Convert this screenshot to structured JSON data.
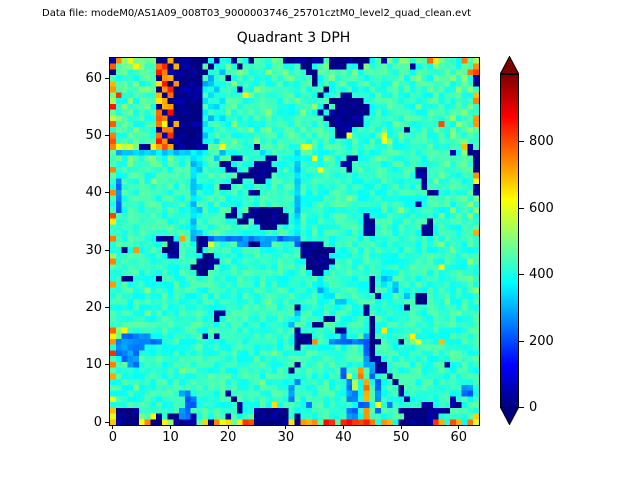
{
  "figure": {
    "annotation": "Data file: modeM0/AS1A09_008T03_9000003746_25701cztM0_level2_quad_clean.evt",
    "title": "Quadrant 3 DPH",
    "background": "#ffffff"
  },
  "chart_data": {
    "type": "heatmap",
    "title": "Quadrant 3 DPH",
    "xlabel": "",
    "ylabel": "",
    "x_ticks": [
      0,
      10,
      20,
      30,
      40,
      50,
      60
    ],
    "y_ticks": [
      0,
      10,
      20,
      30,
      40,
      50,
      60
    ],
    "x_range": [
      -0.5,
      63.5
    ],
    "y_range": [
      -0.5,
      63.5
    ],
    "grid": false,
    "colormap": "jet",
    "vmin": 0,
    "vmax": 1000,
    "colorbar": {
      "ticks": [
        0,
        200,
        400,
        600,
        800
      ],
      "extend": "both",
      "top_arrow_color": "#7f0000",
      "bottom_arrow_color": "#00007f"
    },
    "grid_size": 64,
    "value_encoding": {
      "D": 5,
      "d": 120,
      "b": 250,
      "B": 330,
      "c": 420,
      "g": 470,
      "G": 530,
      "y": 630,
      "o": 730,
      "r": 830,
      "R": 960
    },
    "noise_amplitude": 45,
    "rows_top_to_bottom": [
      "DoGygGggDDoDDDDDDcDccDgcDcgcgcDDDDDDDgDDDDDDDcgDgcGgcgcoygcgcogG",
      "rcggygcgorDoDDDDcDccgcDccgcccgccgDDccgDDDccDgccgcgccDcgcgcggcgco",
      "DggcgggcroDDDDDDDccBccgccccgccgcccDDgcccccgccccggccgcgcgcggcgcor",
      "gccgcgggDooDDDDDcBccDcccgccccccgccgDccgccgccccgcccgccgccgccgcgcD",
      "oggcgccgyrDoDDDDBBcccgccccgccccccgcDccccgcccgccccgccccgcccgccgcD",
      "ocggcggcDorDDDDDBcBcccDccgccgcccccccgDccccBccgccgccgcccgcgccgcgc",
      "grccgcccoDoDDDDDcBccgccygccccgccccgcDcccDDccccgcccccgcccgccgccco",
      "GccgcgcgyoDDDDDDBccBccccccgcccgcgcccccDDDDDDccgccgccccccccgcgcco",
      "rggccggcDooDDDDDcBBccgccgccccccccccgcDcDDDDDDcccgccccgcccgccccgc",
      "gcggcccgoDrDDDDDBcccgccccccgcccccgccDcDDDDDDDcccccgccccggccgcgcc",
      "GgccggccroDDDDDDcBcBcccccgcccgccgccccDDDDDDDccgccccgcccccccgccgo",
      "rcggccggoyDoDDDDBccccgccccccgcccccgcccDDDDDDcgcccgcccccccrccgcco",
      "cgccgcccDooDDDDDcBccccgcgccgcccccgccgccDDDcccccgcccDccgcgccgccgc",
      "occgcggcoDrDDDDDBcccgcccccgccccgccccgccDDycccccyccgccccccgcgcccc",
      "rgccgccgroDDDDDDccBccgcccgccccgcccccccccccgccccygccccgccccgccgcc",
      "oyGygDDyoroDDDDDDggycgcccDccgccccyycccgcccccccccgccccgcgcccgcoD",
      "gBBBBBBBBBBBBBBBBccBccccccBcccccBccccccccccccccccccccccccccDcgDD",
      "cgcggcggccgcccBBccBccDDccccDDcccBccycgcccDDcccgcccccgccccgcccccD",
      "gccgcccggcccccBBcccDDccccDDDccccBcccccccDDccccccccccccccccgccgcD",
      "ocgccgcccgccccBBccccDDccDDDDDcccBcccyccccDcccccccccccDDcccccccgD",
      "gcccgcccccgcccBcccccccDDDDDDccccBccccccccccccccccccccDDccgccccco",
      "cbcccgcggcccccBccccccDDccDDcccccBcccccccccccccccccccccDcgccccccy",
      "cbccgcccccccccBBcccDDcccccccccgcBcccccccccccccccccccccDcccgccgcD",
      "obccccgcccccccBcccccccccDDccccccBccccccccccccccccccccccDDccccccD",
      "cbcgcccccgccccBcccccccccccccccccBccccccccgcccccccccccccccccccgcg",
      "cbcccccgccccccBcccccccccccccccccBccccccccccccccccccccDccgcccccgc",
      "cbccgcccgcccccBBcccccDccDDDDDDccBcccccccccccccccccgccccccccgcccg",
      "rccccgccccccccBcccccDDcDDDDDDDDcBcccccccccccDccccccccccccgccccgc",
      "ycgcccccccccccBcccccccDDcDDDDDDcBcccccccccccDDcccccccccDccccgccc",
      "cccccgccccgcccBcccccccccccDDDcccBcccccccccccDDccccccccDDccccccgc",
      "cccgccccccccgcBBccgcccccccccccccBcccccccccccDDccgcccccDDccccccco",
      "occcccccDDDcocBDDbbbbbbbbbbbbbbbbcccccccccccccccccccccccgccccccc",
      "ccccccgcccDDcccDDyccccbbDDbbccccbDDDDccccccccccccccccccccgccccg",
      "ccDcoccccDDDcccDcccccccccccccccccDDDDDDccccccccccccccccccccgccc",
      "gcccccccccDDccccDDcccccccccccccccDDDDDcccccccccccccccccccgcccccc",
      "occccgcccccccccDDDDcccccccccccccccDDDDDcccccccccccccccccccccccgc",
      "ccccccccccccccDDDDccccccccccccccccDDDDcccccccccccccccccccycccccc",
      "cccgcccccccccccDDccccccccccccccccccDDccccccccccBBcccccccccccgccc",
      "ccDDccccDcccccccccccccccccccccccccccBccccccccDcBBcccccccccccccgc",
      "occccgccccccccccccccccccccgccccccccBBccccccccDcBcBcccccccccccccc",
      "ccccccgcccccccccccccccccccccccccccccBBcccccccDcccBcccccccccccccg",
      "cccccccccgcccccccccccccccccccccccccccBBcccccccDccccBcDDcccccccc",
      "ccccgccccccccccccccccccccccgcccccccccccBBccccccccccccDDcccgccccc",
      "ccccccccccccccccccccccccccccccccDcccccccccccDccccccDccccccccccc",
      "ccccccgcccccccccccDDccccccccccccBcccccccccccDcccccccccccccccgcc",
      "ccccccccccccccccccDcccccccccccccBccccDDccccccDccccccccccccccccc",
      "ccccccccgccccccccccccccccccccccBcccDDccccccccDccccccccccccgccc",
      "oGycccccccccccccccccccccccccccccDccccccDDccccDcyccccccccccccccc",
      "yGbbbbbcccccccccDcDcccccccccccccDDDcccccbcccbDccccgcycccccccccc",
      "obbbbbbbbcccccccccccccccccccccccDDDoccbbbbbbbDDcccDcgycccocccccc",
      "cbbbbbccccccccccccccccccccccccccDcccccccccccbDccccccccccccccccc",
      "rbbbbcccccccccccccccccccccccgcccccccccccccccbDcccccccccccccgccc",
      "ccbbbcccccccccccccccccccccccccccccccccccccccbDDccccccccccccccccc",
      "occbbcccccccccccccccccccccccccccDcccccccccccbbDDccccccccccDcccc",
      "ccccccccccccgccccccccccccccccccDccccccccbccocbDDccccccccccccccc",
      "occcccccccccccccccccccccccccccccccccccccbGcocbccDcccccccccccccc",
      "ccccccccccccccccccccccccccgcccccbccccccccbGcocbccDcccccccccccccc",
      "ccccgccccccccccccccccccccccccccbcccccccccbGcocbcccDccccccccccbbc",
      "ccccccccccccbbccccccDccccccccccbcccccccccbbcocbcccDccccccccccbbc",
      "yccccccccccccbbccccccDcccccccccbcccccccccbbcocbccccDcccccccDcccc",
      "cccccccccccccbbcccccccDcccccycccccbccccccccbbcycbcccccDDcccDDccc",
      "oDDDDcccccccbbccccccccDccDDDDDDccccccccccbbcocbcccDDDDDDDDDccccc",
      "yDDDDgcyDcDDbbDcgcccDccccDDDDDDcDccccccccbbcoccccccDDDDDDccccccyc",
      "oDDDDyoDDygDDDDgyDoyygyrrDDDDDDyDooocrrcrrrrrocoocDDDDDDrocrocoy"
    ]
  }
}
